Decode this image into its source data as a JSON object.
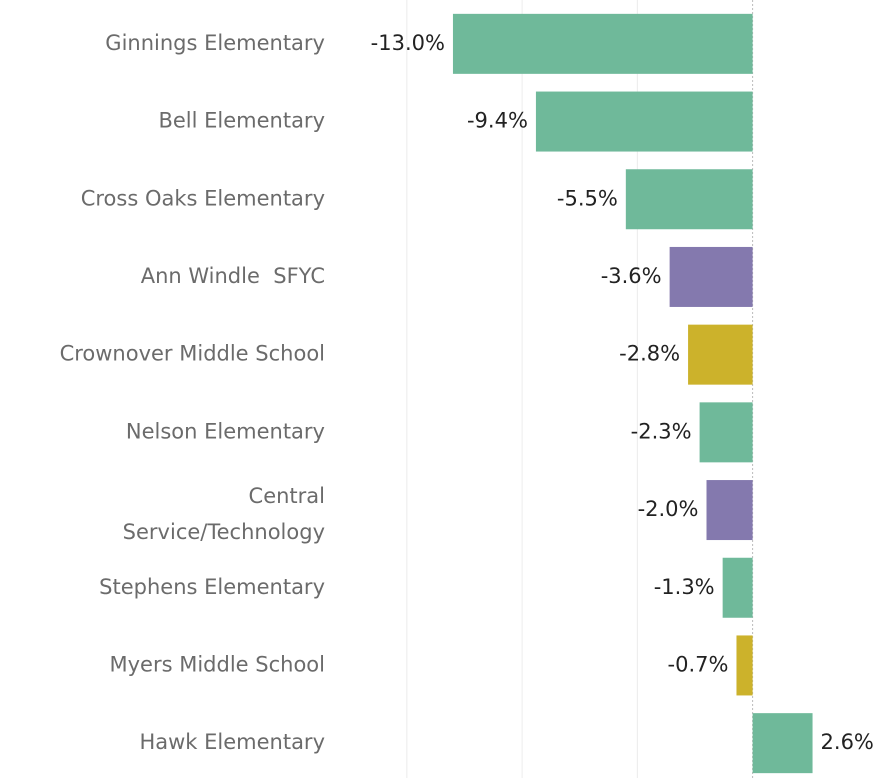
{
  "chart_data": {
    "type": "barh",
    "categories": [
      "Ginnings Elementary",
      "Bell Elementary",
      "Cross Oaks Elementary",
      "Ann Windle  SFYC",
      "Crownover Middle School",
      "Nelson Elementary",
      "Central\nService/Technology",
      "Stephens Elementary",
      "Myers Middle School",
      "Hawk Elementary"
    ],
    "values": [
      -13.0,
      -9.4,
      -5.5,
      -3.6,
      -2.8,
      -2.3,
      -2.0,
      -1.3,
      -0.7,
      2.6
    ],
    "value_labels": [
      "-13.0%",
      "-9.4%",
      "-5.5%",
      "-3.6%",
      "-2.8%",
      "-2.3%",
      "-2.0%",
      "-1.3%",
      "-0.7%",
      "2.6%"
    ],
    "colors": [
      "#6fb99a",
      "#6fb99a",
      "#6fb99a",
      "#8479ae",
      "#ccb22b",
      "#6fb99a",
      "#8479ae",
      "#6fb99a",
      "#ccb22b",
      "#6fb99a"
    ],
    "xlim": [
      -17.9,
      5.7
    ],
    "xticks": [
      -15,
      -10,
      -5,
      0
    ],
    "grid": true
  }
}
